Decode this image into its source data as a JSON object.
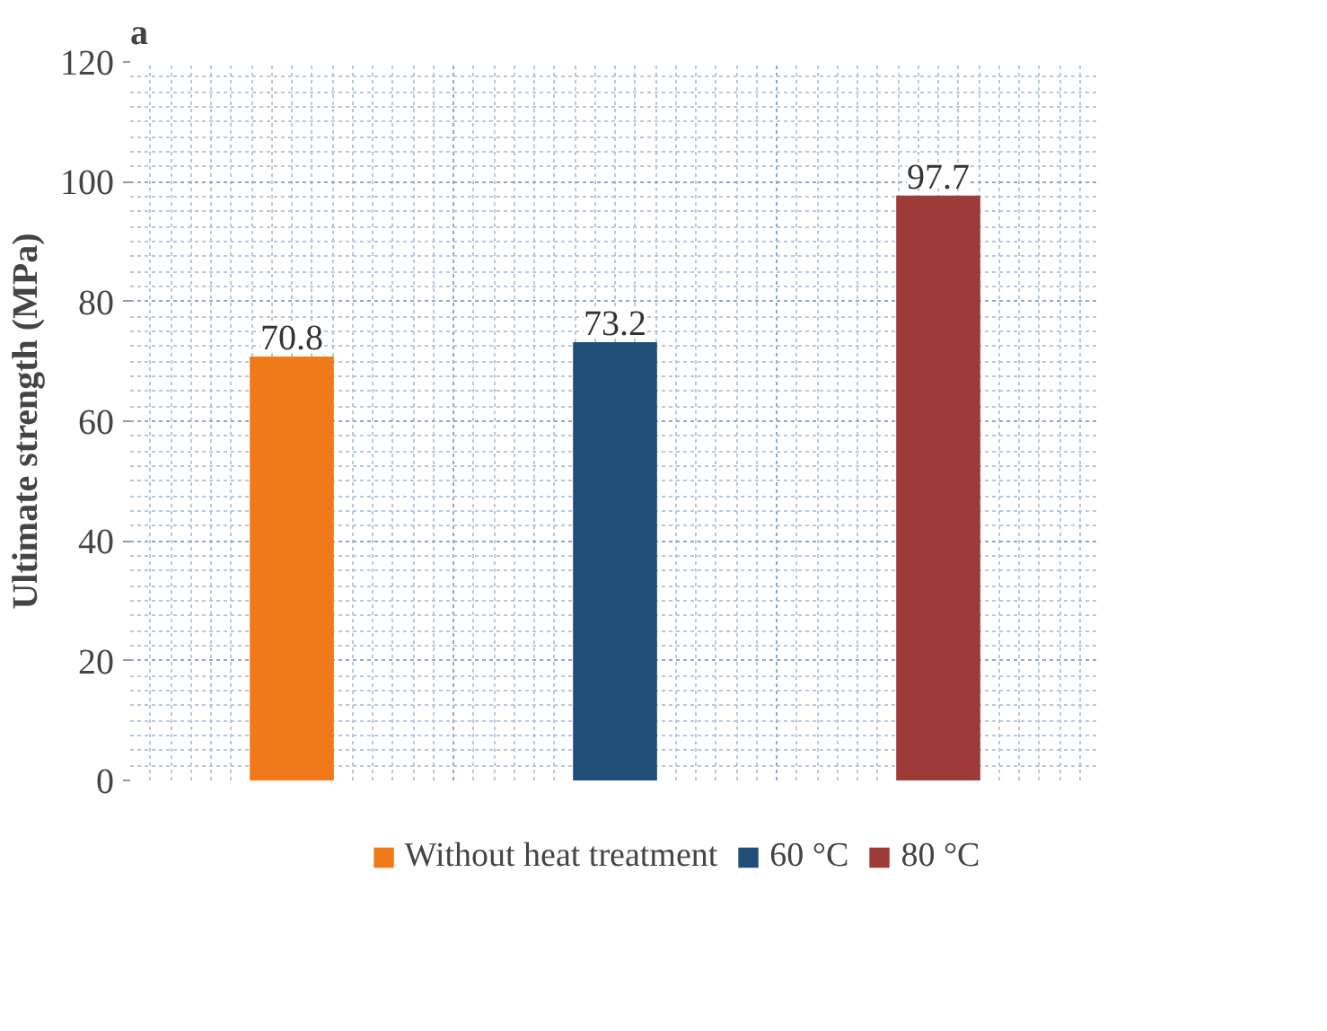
{
  "chart_data": {
    "type": "bar",
    "title": "a",
    "ylabel": "Ultimate strength (MPa)",
    "categories": [
      null,
      null,
      null
    ],
    "series": [
      {
        "name": "Without heat treatment",
        "color": "#f07a1a",
        "values": [
          70.8,
          null,
          null
        ]
      },
      {
        "name": "60 °C",
        "color": "#1f4e79",
        "values": [
          null,
          73.2,
          null
        ]
      },
      {
        "name": "80 °C",
        "color": "#9e3a38",
        "values": [
          null,
          null,
          97.7
        ]
      }
    ],
    "ylim": [
      0,
      120
    ],
    "yticks": [
      0,
      20,
      40,
      60,
      80,
      100,
      120
    ],
    "grid": true,
    "legend": "bottom",
    "data_labels": true
  }
}
